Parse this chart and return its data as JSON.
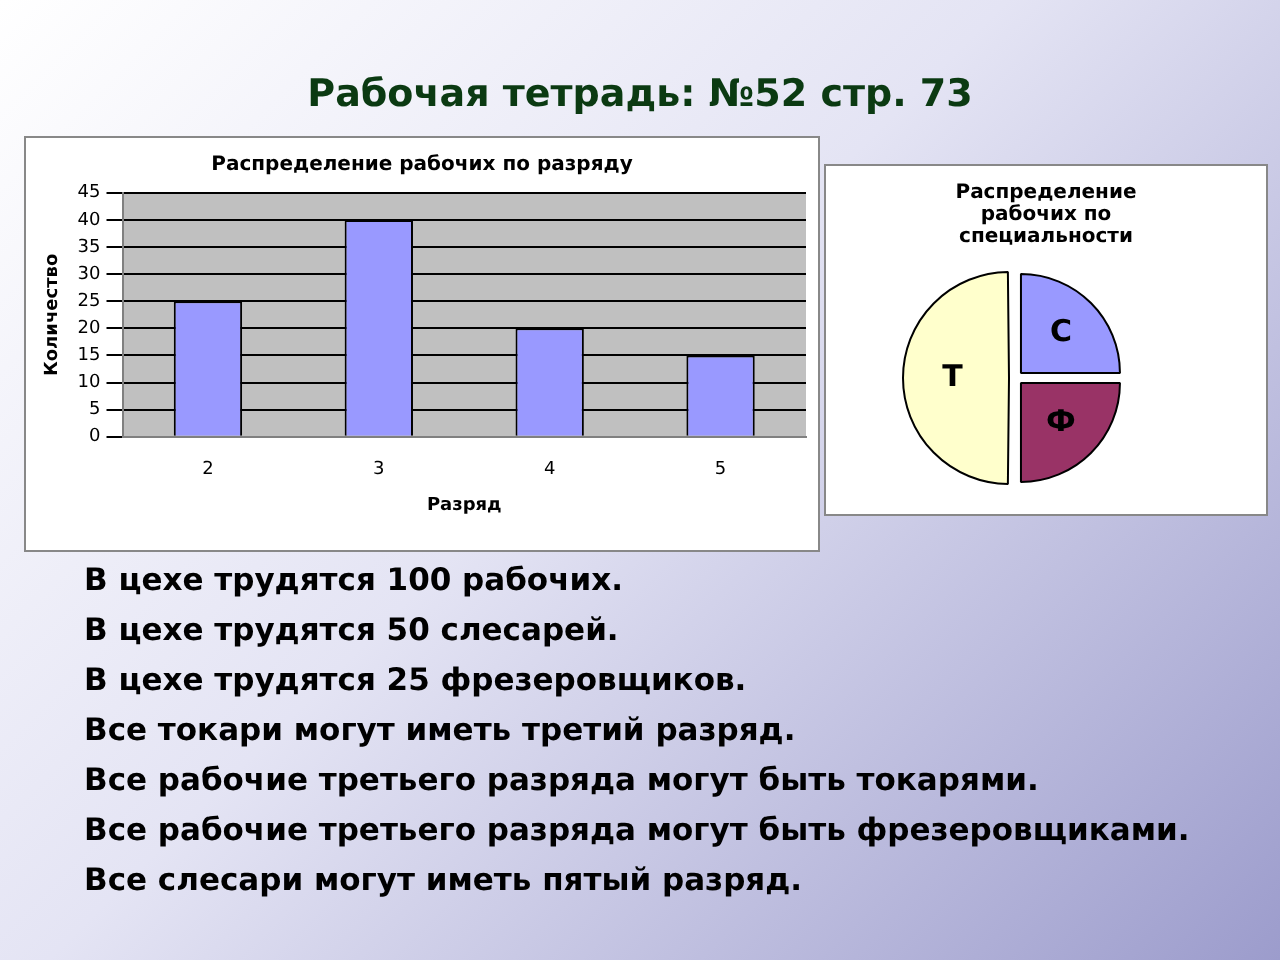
{
  "chart_data": [
    {
      "type": "other",
      "title": "Рабочая тетрадь: №52 стр. 73"
    },
    {
      "type": "bar",
      "title": "Распределение рабочих по разряду",
      "xlabel": "Разряд",
      "ylabel": "Количество",
      "categories": [
        "2",
        "3",
        "4",
        "5"
      ],
      "values": [
        25,
        40,
        20,
        15
      ],
      "color": "#9999ff",
      "ylim": [
        0,
        45
      ],
      "yticks": [
        0,
        5,
        10,
        15,
        20,
        25,
        30,
        35,
        40,
        45
      ],
      "grid": "y",
      "legend": false
    },
    {
      "type": "pie",
      "title": "Распределение рабочих по специальности",
      "categories": [
        "С",
        "Ф",
        "Т"
      ],
      "values": [
        25,
        25,
        50
      ],
      "colors": [
        "#9999ff",
        "#993366",
        "#ffffcc"
      ],
      "legend": false
    },
    {
      "type": "other",
      "annotations": [
        "В цехе трудятся 100 рабочих.",
        "В цехе трудятся 50 слесарей.",
        "В цехе трудятся 25 фрезеровщиков.",
        "Все токари могут иметь третий разряд.",
        "Все рабочие третьего разряда могут быть токарями.",
        "Все рабочие третьего разряда могут быть фрезеровщиками.",
        "Все слесари могут иметь пятый разряд."
      ]
    }
  ]
}
